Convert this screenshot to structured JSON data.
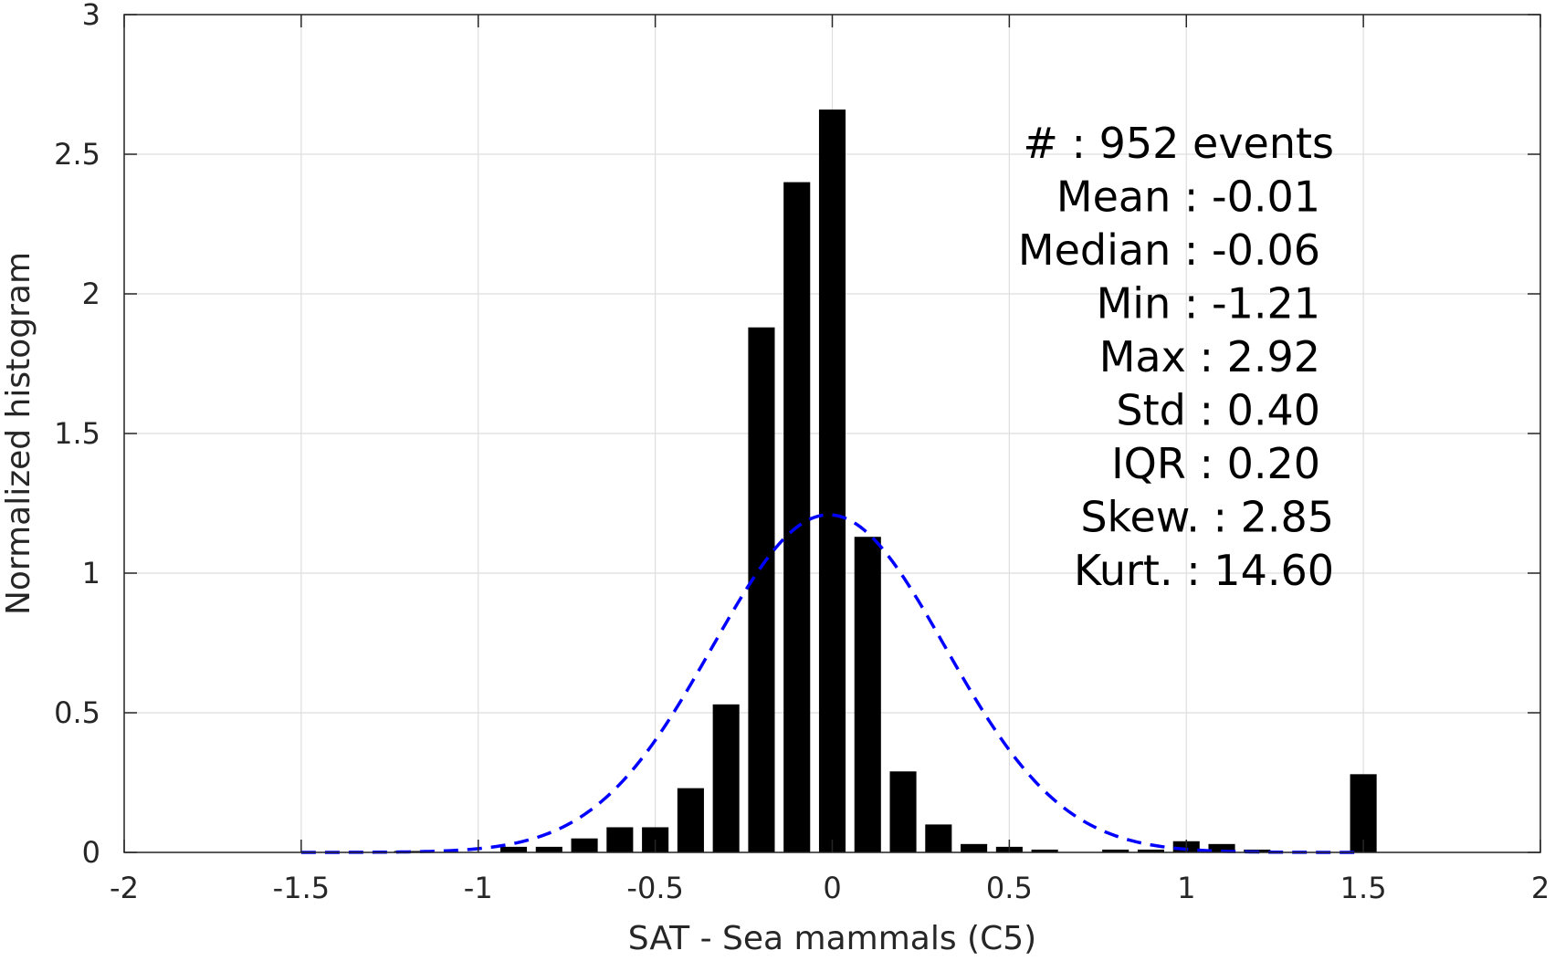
{
  "chart_data": {
    "type": "bar",
    "xlabel": "SAT - Sea mammals  (C5)",
    "ylabel": "Normalized histogram",
    "xlim": [
      -2,
      2
    ],
    "ylim": [
      0,
      3
    ],
    "xticks": [
      "-2",
      "-1.5",
      "-1",
      "-0.5",
      "0",
      "0.5",
      "1",
      "1.5",
      "2"
    ],
    "yticks": [
      "0",
      "0.5",
      "1",
      "1.5",
      "2",
      "2.5",
      "3"
    ],
    "grid": true,
    "bar_width": 0.075,
    "bar_color": "#000000",
    "x": [
      -1.2,
      -0.9,
      -0.8,
      -0.7,
      -0.6,
      -0.5,
      -0.4,
      -0.3,
      -0.2,
      -0.1,
      0.0,
      0.1,
      0.2,
      0.3,
      0.4,
      0.5,
      0.6,
      0.8,
      0.9,
      1.0,
      1.1,
      1.2,
      1.5
    ],
    "values": [
      0.005,
      0.02,
      0.02,
      0.05,
      0.09,
      0.09,
      0.23,
      0.53,
      1.88,
      2.4,
      2.66,
      1.13,
      0.29,
      0.1,
      0.03,
      0.02,
      0.01,
      0.01,
      0.01,
      0.04,
      0.03,
      0.01,
      0.28
    ],
    "fit_curve": {
      "style": "dashed",
      "color": "#0000ff",
      "mean": -0.01,
      "std": 0.33,
      "x_range": [
        -1.5,
        1.5
      ]
    },
    "stats": [
      "#  : 952 events",
      "Mean : -0.01",
      "Median : -0.06",
      "Min : -1.21",
      "Max : 2.92",
      "Std : 0.40",
      "IQR : 0.20",
      "Skew. : 2.85",
      "Kurt. : 14.60"
    ]
  }
}
